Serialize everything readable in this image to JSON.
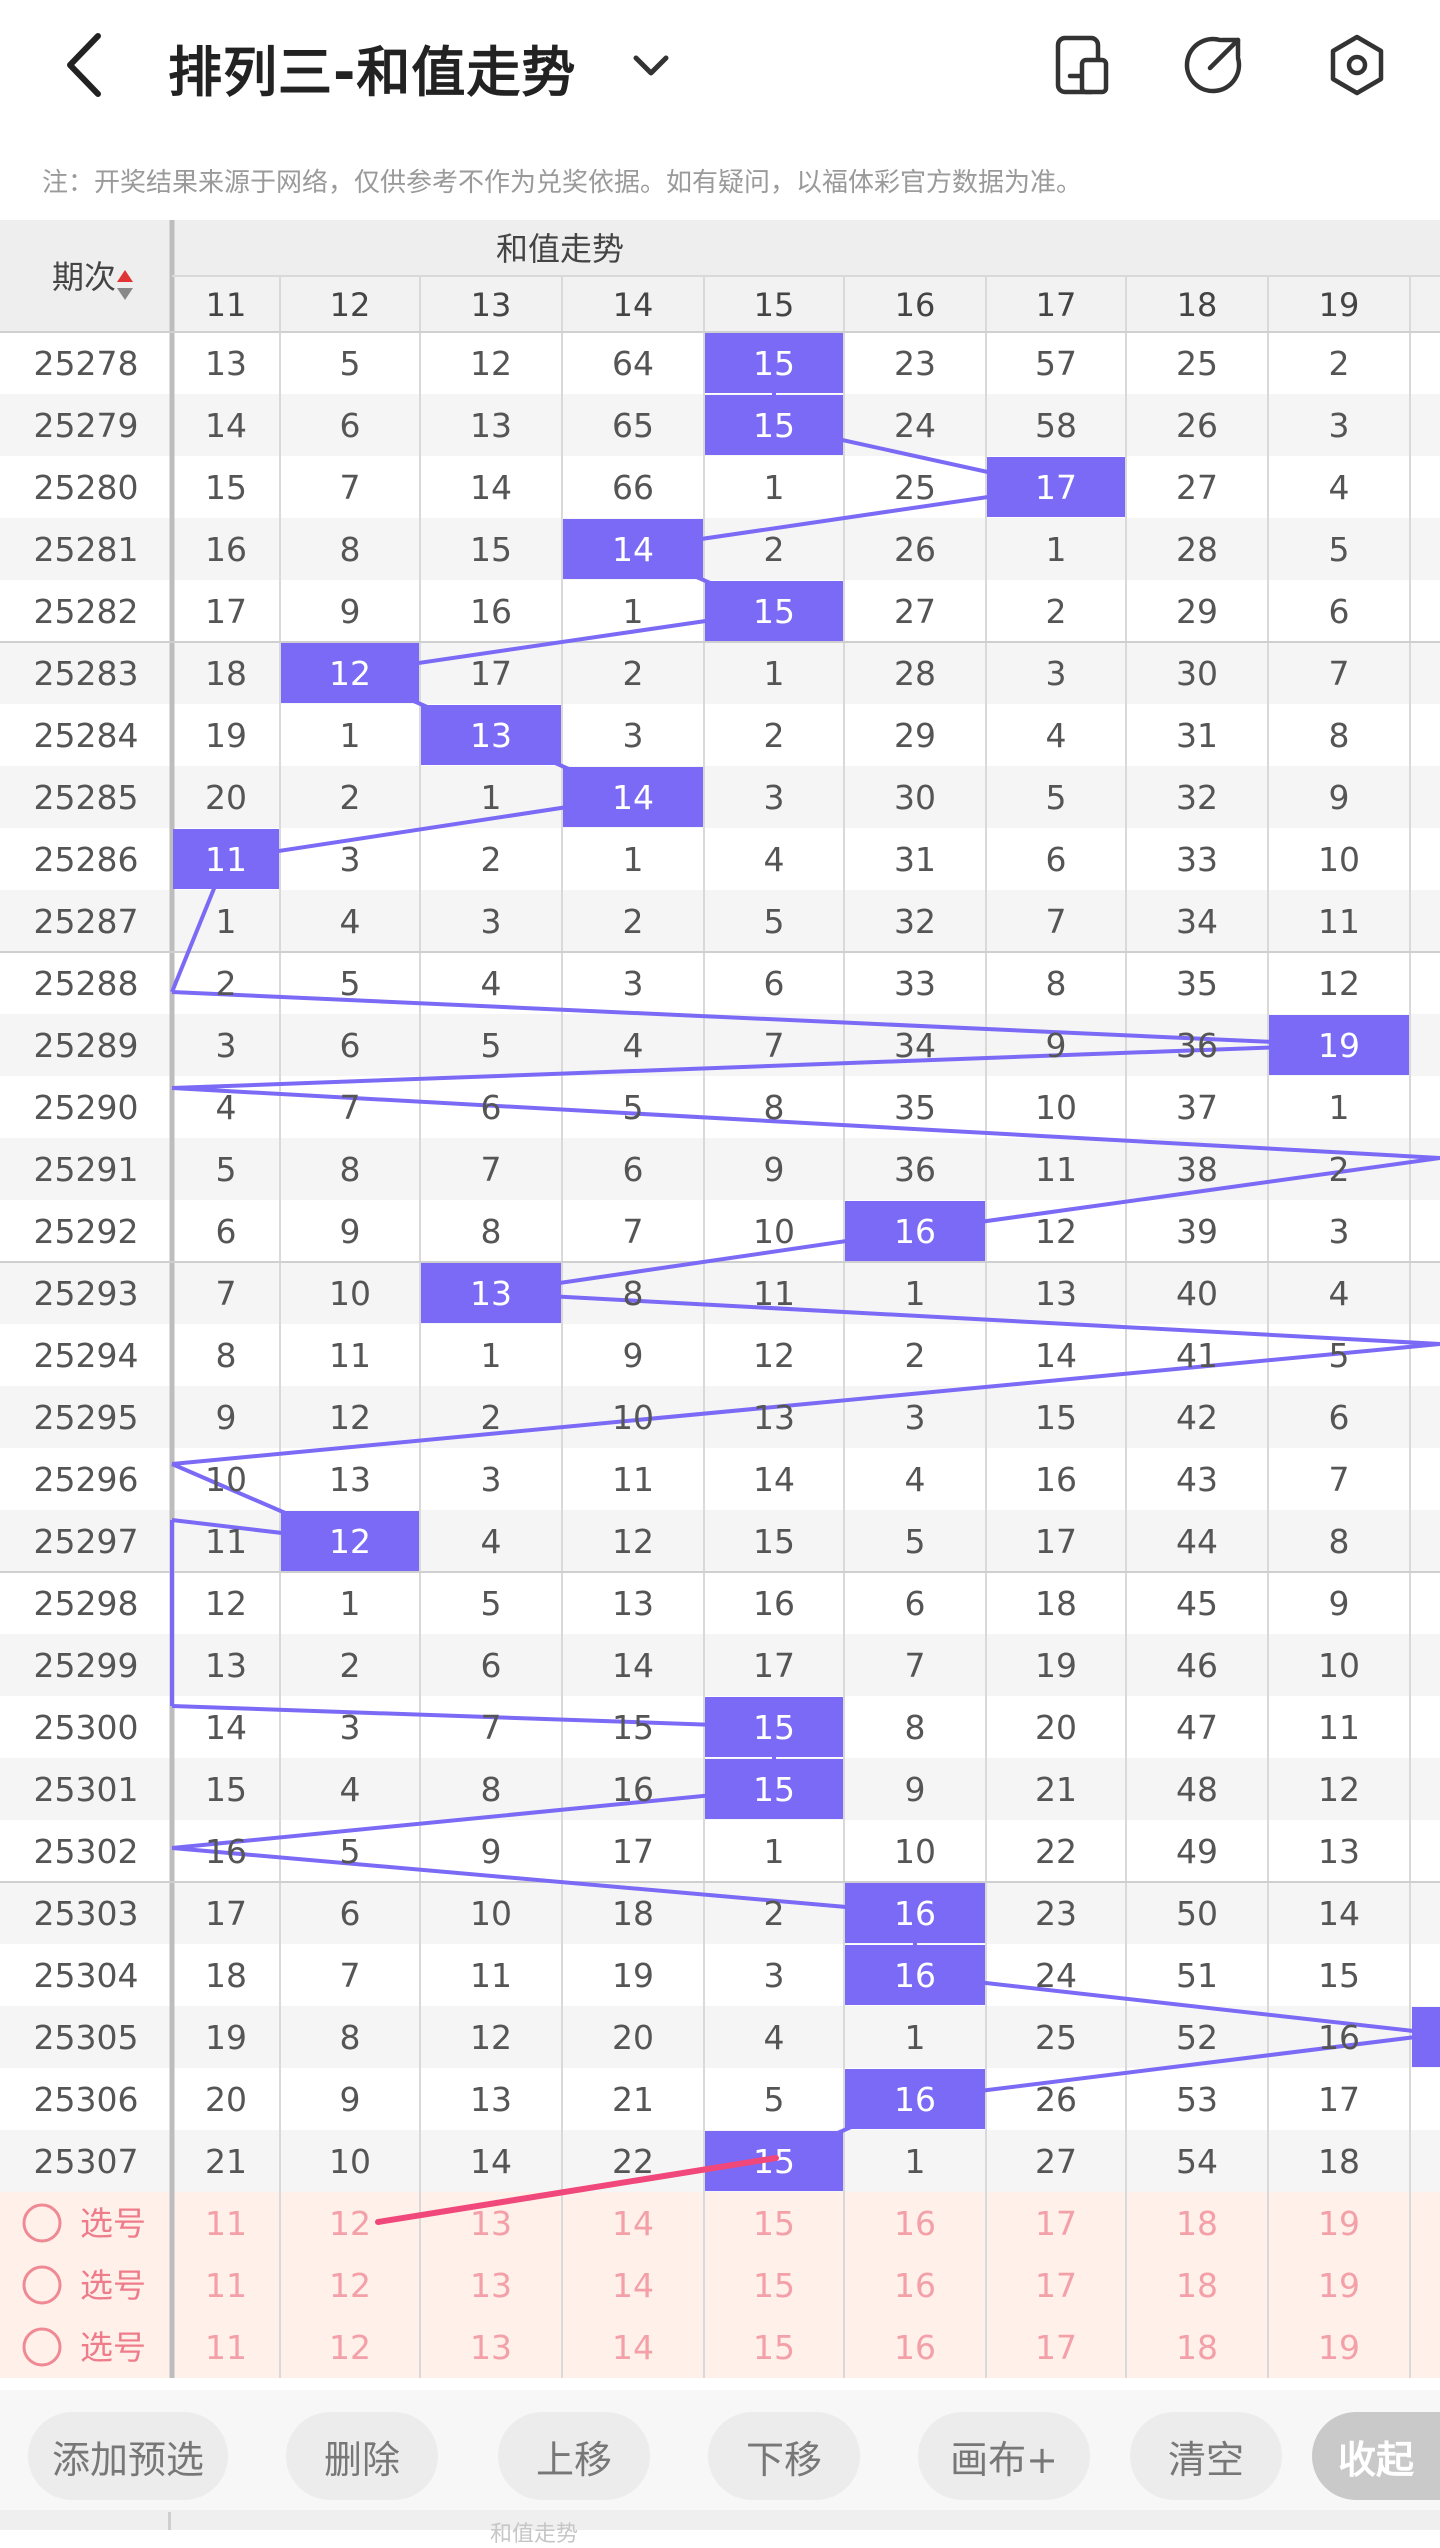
{
  "header": {
    "title": "排列三-和值走势",
    "icons": [
      "back-chevron-icon",
      "chevron-down-icon",
      "phone-layout-icon",
      "share-icon",
      "settings-hexagon-icon"
    ]
  },
  "notice": "注：开奖结果来源于网络，仅供参考不作为兑奖依据。如有疑问，以福体彩官方数据为准。",
  "table": {
    "period_header": "期次",
    "trend_header": "和值走势",
    "columns": [
      "11",
      "12",
      "13",
      "14",
      "15",
      "16",
      "17",
      "18",
      "19"
    ],
    "rows": [
      {
        "period": "25278",
        "cells": [
          "13",
          "5",
          "12",
          "64",
          "15",
          "23",
          "57",
          "25",
          "2"
        ]
      },
      {
        "period": "25279",
        "cells": [
          "14",
          "6",
          "13",
          "65",
          "15",
          "24",
          "58",
          "26",
          "3"
        ]
      },
      {
        "period": "25280",
        "cells": [
          "15",
          "7",
          "14",
          "66",
          "1",
          "25",
          "17",
          "27",
          "4"
        ]
      },
      {
        "period": "25281",
        "cells": [
          "16",
          "8",
          "15",
          "14",
          "2",
          "26",
          "1",
          "28",
          "5"
        ]
      },
      {
        "period": "25282",
        "cells": [
          "17",
          "9",
          "16",
          "1",
          "15",
          "27",
          "2",
          "29",
          "6"
        ]
      },
      {
        "period": "25283",
        "cells": [
          "18",
          "12",
          "17",
          "2",
          "1",
          "28",
          "3",
          "30",
          "7"
        ]
      },
      {
        "period": "25284",
        "cells": [
          "19",
          "1",
          "13",
          "3",
          "2",
          "29",
          "4",
          "31",
          "8"
        ]
      },
      {
        "period": "25285",
        "cells": [
          "20",
          "2",
          "1",
          "14",
          "3",
          "30",
          "5",
          "32",
          "9"
        ]
      },
      {
        "period": "25286",
        "cells": [
          "11",
          "3",
          "2",
          "1",
          "4",
          "31",
          "6",
          "33",
          "10"
        ]
      },
      {
        "period": "25287",
        "cells": [
          "1",
          "4",
          "3",
          "2",
          "5",
          "32",
          "7",
          "34",
          "11"
        ]
      },
      {
        "period": "25288",
        "cells": [
          "2",
          "5",
          "4",
          "3",
          "6",
          "33",
          "8",
          "35",
          "12"
        ]
      },
      {
        "period": "25289",
        "cells": [
          "3",
          "6",
          "5",
          "4",
          "7",
          "34",
          "9",
          "36",
          "19"
        ]
      },
      {
        "period": "25290",
        "cells": [
          "4",
          "7",
          "6",
          "5",
          "8",
          "35",
          "10",
          "37",
          "1"
        ]
      },
      {
        "period": "25291",
        "cells": [
          "5",
          "8",
          "7",
          "6",
          "9",
          "36",
          "11",
          "38",
          "2"
        ]
      },
      {
        "period": "25292",
        "cells": [
          "6",
          "9",
          "8",
          "7",
          "10",
          "16",
          "12",
          "39",
          "3"
        ]
      },
      {
        "period": "25293",
        "cells": [
          "7",
          "10",
          "13",
          "8",
          "11",
          "1",
          "13",
          "40",
          "4"
        ]
      },
      {
        "period": "25294",
        "cells": [
          "8",
          "11",
          "1",
          "9",
          "12",
          "2",
          "14",
          "41",
          "5"
        ]
      },
      {
        "period": "25295",
        "cells": [
          "9",
          "12",
          "2",
          "10",
          "13",
          "3",
          "15",
          "42",
          "6"
        ]
      },
      {
        "period": "25296",
        "cells": [
          "10",
          "13",
          "3",
          "11",
          "14",
          "4",
          "16",
          "43",
          "7"
        ]
      },
      {
        "period": "25297",
        "cells": [
          "11",
          "12",
          "4",
          "12",
          "15",
          "5",
          "17",
          "44",
          "8"
        ]
      },
      {
        "period": "25298",
        "cells": [
          "12",
          "1",
          "5",
          "13",
          "16",
          "6",
          "18",
          "45",
          "9"
        ]
      },
      {
        "period": "25299",
        "cells": [
          "13",
          "2",
          "6",
          "14",
          "17",
          "7",
          "19",
          "46",
          "10"
        ]
      },
      {
        "period": "25300",
        "cells": [
          "14",
          "3",
          "7",
          "15",
          "15",
          "8",
          "20",
          "47",
          "11"
        ]
      },
      {
        "period": "25301",
        "cells": [
          "15",
          "4",
          "8",
          "16",
          "15",
          "9",
          "21",
          "48",
          "12"
        ]
      },
      {
        "period": "25302",
        "cells": [
          "16",
          "5",
          "9",
          "17",
          "1",
          "10",
          "22",
          "49",
          "13"
        ]
      },
      {
        "period": "25303",
        "cells": [
          "17",
          "6",
          "10",
          "18",
          "2",
          "16",
          "23",
          "50",
          "14"
        ]
      },
      {
        "period": "25304",
        "cells": [
          "18",
          "7",
          "11",
          "19",
          "3",
          "16",
          "24",
          "51",
          "15"
        ]
      },
      {
        "period": "25305",
        "cells": [
          "19",
          "8",
          "12",
          "20",
          "4",
          "1",
          "25",
          "52",
          "16"
        ]
      },
      {
        "period": "25306",
        "cells": [
          "20",
          "9",
          "13",
          "21",
          "5",
          "16",
          "26",
          "53",
          "17"
        ]
      },
      {
        "period": "25307",
        "cells": [
          "21",
          "10",
          "14",
          "22",
          "15",
          "1",
          "27",
          "54",
          "18"
        ]
      }
    ],
    "hits": [
      {
        "row": 0,
        "col": 4
      },
      {
        "row": 1,
        "col": 4
      },
      {
        "row": 2,
        "col": 6
      },
      {
        "row": 3,
        "col": 3
      },
      {
        "row": 4,
        "col": 4
      },
      {
        "row": 5,
        "col": 1
      },
      {
        "row": 6,
        "col": 2
      },
      {
        "row": 7,
        "col": 3
      },
      {
        "row": 8,
        "col": 0
      },
      {
        "row": 11,
        "col": 8
      },
      {
        "row": 14,
        "col": 5
      },
      {
        "row": 15,
        "col": 2
      },
      {
        "row": 19,
        "col": 1
      },
      {
        "row": 22,
        "col": 4
      },
      {
        "row": 23,
        "col": 4
      },
      {
        "row": 25,
        "col": 5
      },
      {
        "row": 26,
        "col": 5
      },
      {
        "row": 28,
        "col": 5
      },
      {
        "row": 29,
        "col": 4
      }
    ],
    "pick_label": "选号",
    "pick_rows": 3
  },
  "colors": {
    "hit_fill": "#7a6af5",
    "trend_line": "#7a6af5",
    "arrow": "#f0487a",
    "pick_bg": "#fff0ea"
  },
  "toolbar": {
    "add": "添加预选",
    "delete": "删除",
    "up": "上移",
    "down": "下移",
    "canvas": "画布+",
    "clear": "清空",
    "collapse": "收起"
  },
  "footer_partial": "和值走势"
}
